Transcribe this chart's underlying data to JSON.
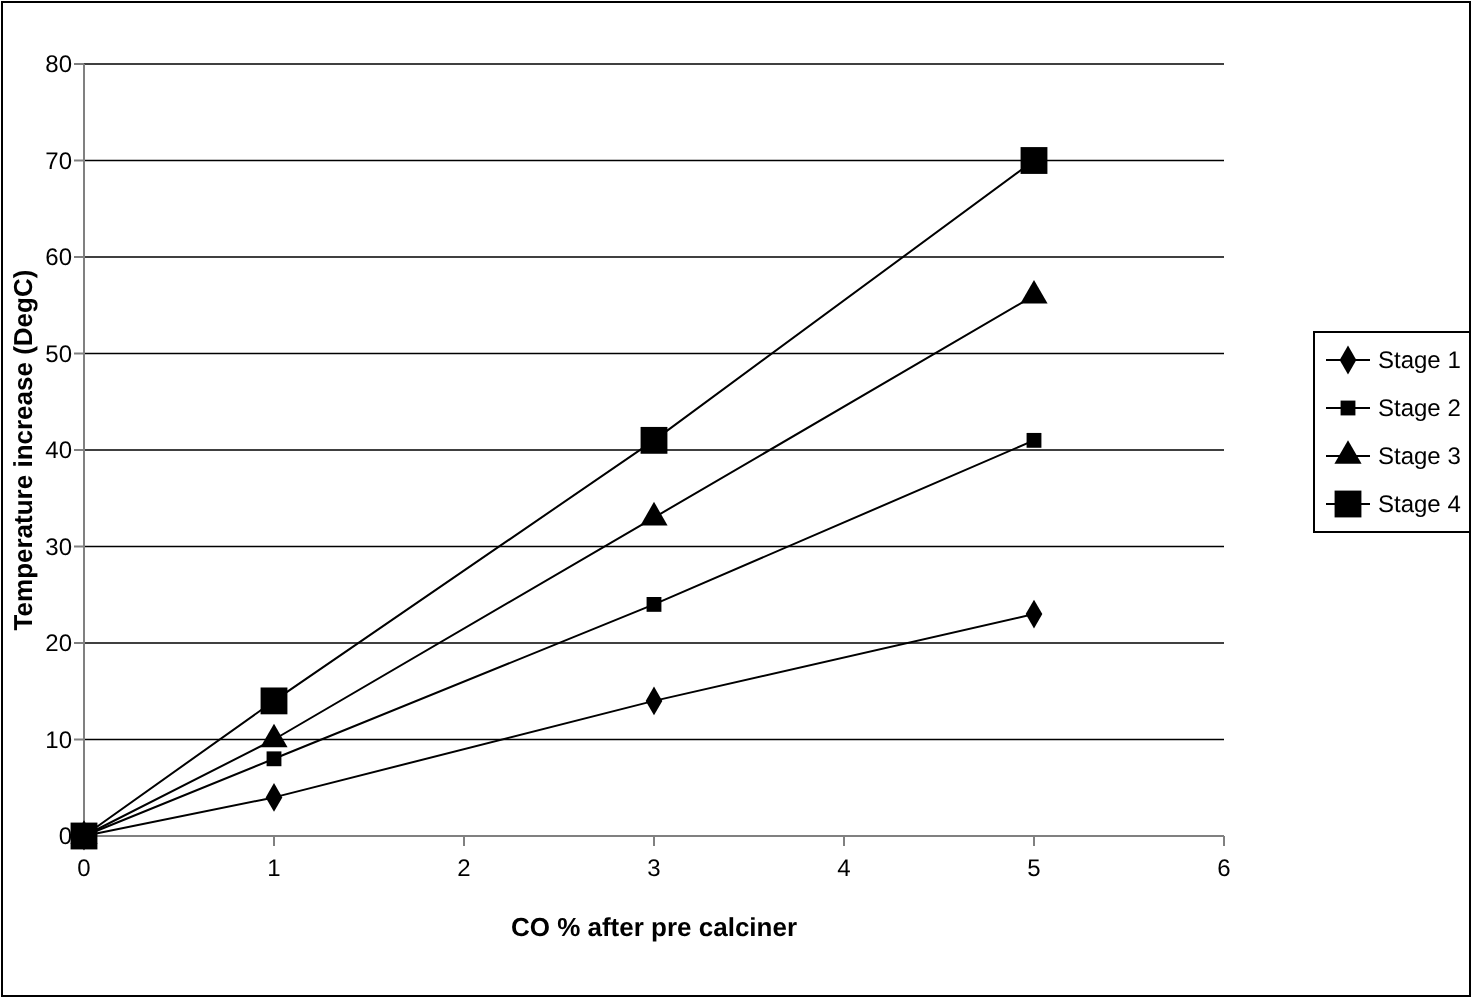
{
  "chart_data": {
    "type": "line",
    "xlabel": "CO % after pre calciner",
    "ylabel": "Temperature increase (DegC)",
    "x": [
      0,
      1,
      3,
      5
    ],
    "series": [
      {
        "name": "Stage 1",
        "color": "#000000",
        "marker": "diamond",
        "values": [
          0,
          4,
          14,
          23
        ]
      },
      {
        "name": "Stage 2",
        "color": "#000000",
        "marker": "square",
        "values": [
          0,
          8,
          24,
          41
        ]
      },
      {
        "name": "Stage 3",
        "color": "#000000",
        "marker": "triangle",
        "values": [
          0,
          10,
          33,
          56
        ]
      },
      {
        "name": "Stage 4",
        "color": "#000000",
        "marker": "square",
        "values": [
          0,
          14,
          41,
          70
        ]
      }
    ],
    "xlim": [
      0,
      6
    ],
    "xticks": [
      0,
      1,
      2,
      3,
      4,
      5,
      6
    ],
    "ylim": [
      0,
      80
    ],
    "yticks": [
      0,
      10,
      20,
      30,
      40,
      50,
      60,
      70,
      80
    ],
    "grid": "y",
    "legend": "right",
    "line_style": "solid"
  }
}
